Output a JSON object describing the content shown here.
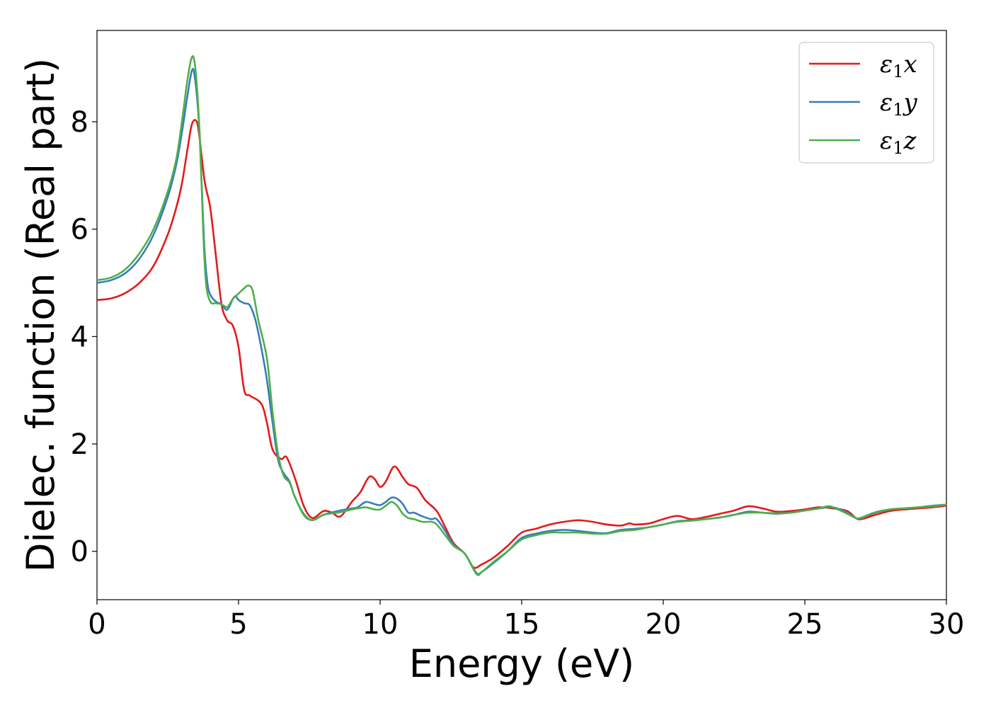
{
  "chart_data": {
    "type": "line",
    "xlabel": "Energy (eV)",
    "ylabel": "Dielec. function (Real part)",
    "xlim": [
      0,
      30
    ],
    "ylim": [
      -0.9,
      9.7
    ],
    "x_ticks": [
      0,
      5,
      10,
      15,
      20,
      25,
      30
    ],
    "y_ticks": [
      0,
      2,
      4,
      6,
      8
    ],
    "grid": false,
    "legend_position": "top-right",
    "series": [
      {
        "name": "ε1x",
        "legend_base": "ε",
        "legend_sub": "1",
        "legend_suffix": "x",
        "color": "#e41a1c",
        "x": [
          0,
          0.5,
          1,
          1.5,
          2,
          2.5,
          2.8,
          3.0,
          3.2,
          3.35,
          3.5,
          3.6,
          3.8,
          4.0,
          4.2,
          4.4,
          4.6,
          4.8,
          5.0,
          5.2,
          5.4,
          5.8,
          6.0,
          6.2,
          6.5,
          6.7,
          7.0,
          7.3,
          7.6,
          8.0,
          8.3,
          8.6,
          9.0,
          9.3,
          9.6,
          9.8,
          10.0,
          10.2,
          10.5,
          10.8,
          11.0,
          11.3,
          11.6,
          12.0,
          12.3,
          12.6,
          13.0,
          13.3,
          13.6,
          14.0,
          14.5,
          15.0,
          15.5,
          16.0,
          16.5,
          17.0,
          17.5,
          18.0,
          18.5,
          18.8,
          19.0,
          19.5,
          20.0,
          20.5,
          21.0,
          21.5,
          22.0,
          22.5,
          23.0,
          23.5,
          24.0,
          24.5,
          25.0,
          25.5,
          26.0,
          26.5,
          26.8,
          27.0,
          27.5,
          28.0,
          28.5,
          29.0,
          29.5,
          30.0
        ],
        "values": [
          4.68,
          4.71,
          4.81,
          5.0,
          5.32,
          5.9,
          6.4,
          6.85,
          7.5,
          7.95,
          8.02,
          7.8,
          6.9,
          6.4,
          5.5,
          4.6,
          4.3,
          4.2,
          3.8,
          3.0,
          2.9,
          2.75,
          2.4,
          1.9,
          1.72,
          1.75,
          1.35,
          0.85,
          0.62,
          0.75,
          0.72,
          0.65,
          0.92,
          1.1,
          1.38,
          1.35,
          1.2,
          1.3,
          1.58,
          1.38,
          1.25,
          1.18,
          0.95,
          0.75,
          0.45,
          0.15,
          -0.05,
          -0.3,
          -0.24,
          -0.12,
          0.1,
          0.35,
          0.42,
          0.5,
          0.55,
          0.58,
          0.55,
          0.5,
          0.48,
          0.52,
          0.5,
          0.52,
          0.6,
          0.66,
          0.6,
          0.64,
          0.7,
          0.76,
          0.84,
          0.8,
          0.74,
          0.75,
          0.78,
          0.82,
          0.8,
          0.75,
          0.62,
          0.6,
          0.68,
          0.75,
          0.78,
          0.8,
          0.82,
          0.85
        ]
      },
      {
        "name": "ε1y",
        "legend_base": "ε",
        "legend_sub": "1",
        "legend_suffix": "y",
        "color": "#377eb8",
        "x": [
          0,
          0.5,
          1,
          1.5,
          2,
          2.5,
          2.8,
          3.0,
          3.2,
          3.35,
          3.45,
          3.6,
          3.7,
          3.8,
          3.9,
          4.0,
          4.2,
          4.4,
          4.6,
          4.8,
          4.9,
          5.0,
          5.2,
          5.4,
          5.6,
          5.8,
          6.0,
          6.2,
          6.4,
          6.6,
          6.8,
          7.0,
          7.3,
          7.6,
          8.0,
          8.5,
          9.0,
          9.2,
          9.5,
          9.8,
          10.0,
          10.2,
          10.4,
          10.6,
          10.8,
          11.0,
          11.2,
          11.5,
          11.8,
          12.0,
          12.3,
          12.6,
          13.0,
          13.4,
          13.6,
          14.0,
          14.5,
          15.0,
          15.5,
          16.0,
          16.5,
          17.0,
          17.5,
          18.0,
          18.5,
          19.0,
          19.5,
          20.0,
          20.5,
          21.0,
          21.5,
          22.0,
          22.5,
          23.0,
          23.5,
          24.0,
          24.5,
          25.0,
          25.5,
          26.0,
          26.5,
          26.8,
          27.0,
          27.5,
          28.0,
          28.5,
          29.0,
          29.5,
          30.0
        ],
        "values": [
          5.0,
          5.05,
          5.18,
          5.45,
          5.9,
          6.6,
          7.2,
          7.8,
          8.5,
          8.95,
          8.85,
          8.0,
          6.8,
          5.6,
          5.0,
          4.78,
          4.65,
          4.6,
          4.5,
          4.7,
          4.75,
          4.68,
          4.62,
          4.58,
          4.3,
          3.8,
          3.2,
          2.4,
          1.7,
          1.45,
          1.3,
          1.0,
          0.7,
          0.58,
          0.68,
          0.75,
          0.8,
          0.82,
          0.92,
          0.88,
          0.86,
          0.92,
          1.0,
          0.98,
          0.88,
          0.72,
          0.72,
          0.65,
          0.6,
          0.6,
          0.38,
          0.12,
          -0.05,
          -0.4,
          -0.38,
          -0.22,
          0.0,
          0.25,
          0.33,
          0.38,
          0.4,
          0.38,
          0.35,
          0.34,
          0.4,
          0.42,
          0.45,
          0.5,
          0.56,
          0.58,
          0.6,
          0.63,
          0.68,
          0.74,
          0.72,
          0.7,
          0.72,
          0.76,
          0.8,
          0.82,
          0.72,
          0.62,
          0.62,
          0.72,
          0.78,
          0.8,
          0.82,
          0.85,
          0.87
        ]
      },
      {
        "name": "ε1z",
        "legend_base": "ε",
        "legend_sub": "1",
        "legend_suffix": "z",
        "color": "#4daf4a",
        "x": [
          0,
          0.5,
          1,
          1.5,
          2,
          2.5,
          2.8,
          3.0,
          3.2,
          3.35,
          3.45,
          3.55,
          3.65,
          3.75,
          3.85,
          4.0,
          4.2,
          4.4,
          4.6,
          4.8,
          5.0,
          5.2,
          5.35,
          5.5,
          5.7,
          6.0,
          6.2,
          6.4,
          6.6,
          6.8,
          7.0,
          7.3,
          7.6,
          8.0,
          8.5,
          9.0,
          9.2,
          9.5,
          9.8,
          10.0,
          10.2,
          10.4,
          10.6,
          10.8,
          11.0,
          11.2,
          11.5,
          11.8,
          12.0,
          12.3,
          12.6,
          13.0,
          13.4,
          13.6,
          14.0,
          14.5,
          15.0,
          15.5,
          16.0,
          16.5,
          17.0,
          17.5,
          18.0,
          18.5,
          19.0,
          19.5,
          20.0,
          20.5,
          21.0,
          21.5,
          22.0,
          22.5,
          23.0,
          23.5,
          24.0,
          24.5,
          25.0,
          25.5,
          25.8,
          26.0,
          26.5,
          26.8,
          27.0,
          27.5,
          28.0,
          28.5,
          29.0,
          29.5,
          30.0
        ],
        "values": [
          5.05,
          5.1,
          5.25,
          5.55,
          6.0,
          6.7,
          7.3,
          8.0,
          8.8,
          9.2,
          9.1,
          8.5,
          7.5,
          6.0,
          5.0,
          4.65,
          4.62,
          4.6,
          4.55,
          4.7,
          4.8,
          4.9,
          4.95,
          4.85,
          4.3,
          3.6,
          2.6,
          1.8,
          1.4,
          1.28,
          1.0,
          0.68,
          0.58,
          0.68,
          0.72,
          0.78,
          0.8,
          0.82,
          0.78,
          0.78,
          0.85,
          0.92,
          0.85,
          0.7,
          0.62,
          0.6,
          0.55,
          0.55,
          0.5,
          0.3,
          0.1,
          -0.05,
          -0.42,
          -0.38,
          -0.2,
          0.0,
          0.22,
          0.3,
          0.35,
          0.35,
          0.35,
          0.33,
          0.33,
          0.38,
          0.4,
          0.45,
          0.5,
          0.55,
          0.57,
          0.6,
          0.63,
          0.68,
          0.72,
          0.72,
          0.71,
          0.72,
          0.76,
          0.8,
          0.84,
          0.82,
          0.7,
          0.62,
          0.63,
          0.73,
          0.78,
          0.8,
          0.82,
          0.84,
          0.87
        ]
      }
    ]
  }
}
